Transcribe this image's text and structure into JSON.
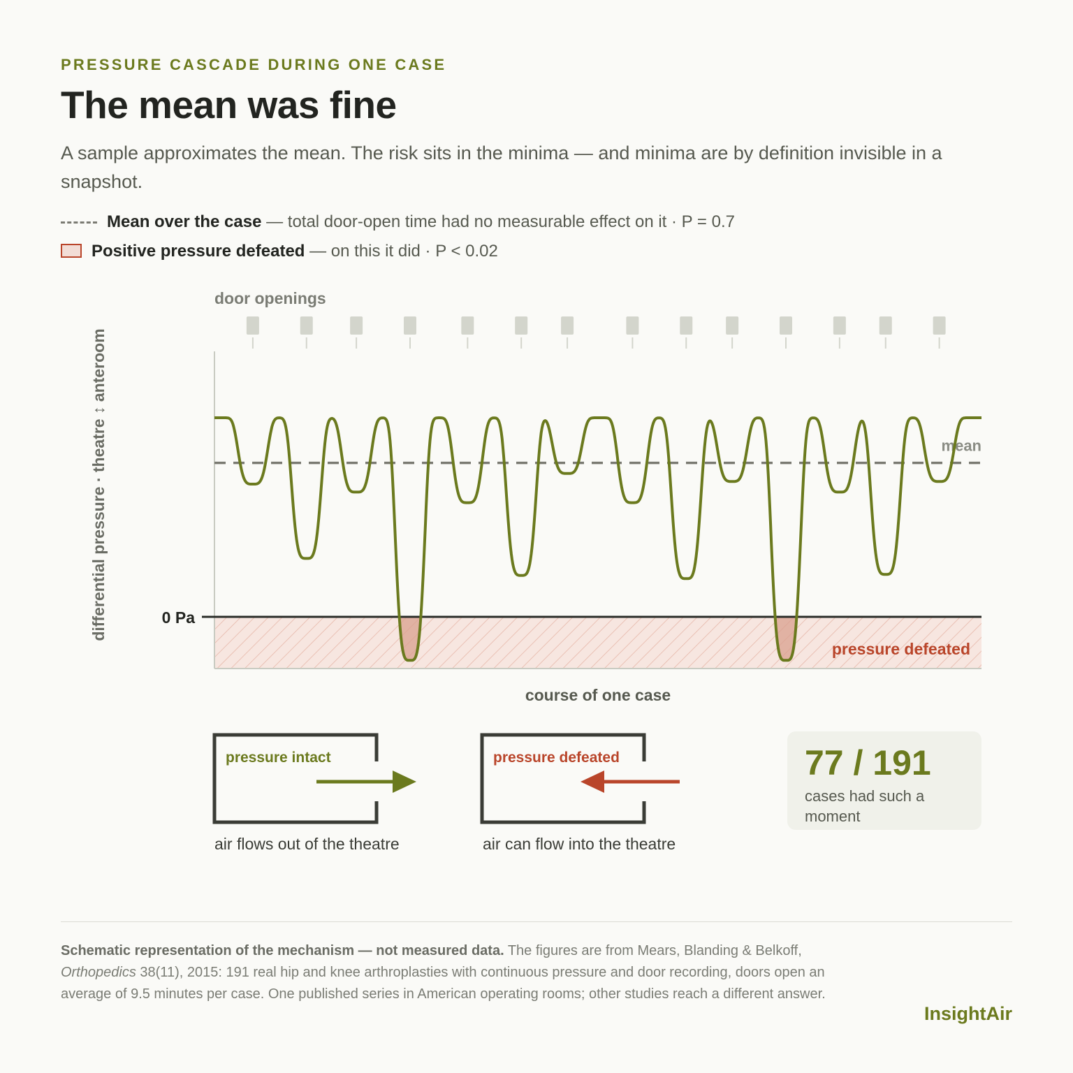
{
  "header": {
    "eyebrow": "PRESSURE CASCADE DURING ONE CASE",
    "title": "The mean was fine",
    "subtitle": "A sample approximates the mean. The risk sits in the minima — and minima are by definition invisible in a snapshot."
  },
  "legend": {
    "mean_label": "Mean over the case",
    "mean_text": " — total door-open time had no measurable effect on it · P = 0.7",
    "defeated_label": "Positive pressure defeated",
    "defeated_text": " — on this it did · P < 0.02"
  },
  "chart_data": {
    "type": "line",
    "title": "",
    "xlabel": "course of one case",
    "ylabel": "differential pressure · theatre ↕ anteroom",
    "zero_label": "0 Pa",
    "mean_label": "mean",
    "defeated_zone_label": "pressure defeated",
    "door_openings_label": "door openings",
    "x_range": [
      0,
      100
    ],
    "y_range": [
      -1.0,
      3.7
    ],
    "baseline": 3.75,
    "mean": 2.9,
    "door_openings": [
      5,
      12,
      18.5,
      25.5,
      33,
      40,
      46,
      54.5,
      61.5,
      67.5,
      74.5,
      81.5,
      87.5,
      94.5
    ],
    "dips": [
      {
        "x": 5,
        "min": 2.5
      },
      {
        "x": 12,
        "min": 1.1
      },
      {
        "x": 18.5,
        "min": 2.35
      },
      {
        "x": 25.5,
        "min": -0.82
      },
      {
        "x": 33,
        "min": 2.15
      },
      {
        "x": 40,
        "min": 0.78
      },
      {
        "x": 46,
        "min": 2.7
      },
      {
        "x": 54.5,
        "min": 2.15
      },
      {
        "x": 61.5,
        "min": 0.72
      },
      {
        "x": 67.5,
        "min": 2.55
      },
      {
        "x": 74.5,
        "min": -0.82
      },
      {
        "x": 81.5,
        "min": 2.35
      },
      {
        "x": 87.5,
        "min": 0.8
      },
      {
        "x": 94.5,
        "min": 2.55
      }
    ],
    "grid": false
  },
  "diagram": {
    "intact_label": "pressure intact",
    "intact_caption": "air flows out of the theatre",
    "defeated_label": "pressure defeated",
    "defeated_caption": "air can flow into the theatre"
  },
  "stat": {
    "value": "77 / 191",
    "label": "cases had such a moment"
  },
  "footer": {
    "note_bold": "Schematic representation of the mechanism — not measured data.",
    "note_pre": " The figures are from Mears, Blanding & Belkoff, ",
    "note_journal": "Orthopedics",
    "note_post": " 38(11), 2015: 191 real hip and knee arthroplasties with continuous pressure and door recording, doors open an average of 9.5 minutes per case. One published series in American operating rooms; other studies reach a different answer.",
    "brand": "InsightAir"
  },
  "colors": {
    "accent": "#6b7a1e",
    "defeated": "#b9452a",
    "mean_line": "#7a7a72",
    "door_marker": "#d3d5cc",
    "ink": "#222420"
  }
}
